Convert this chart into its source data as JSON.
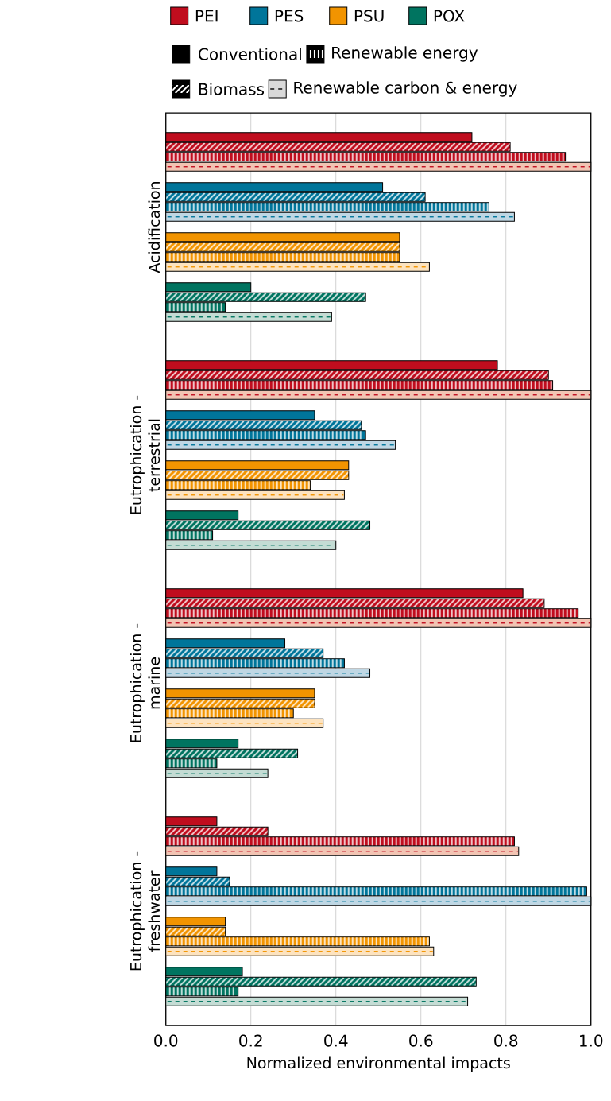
{
  "chart_data": {
    "type": "bar",
    "orientation": "horizontal",
    "xlabel": "Normalized environmental impacts",
    "categories": [
      "Acidification",
      "Eutrophication - terrestrial",
      "Eutrophication - marine",
      "Eutrophication - freshwater"
    ],
    "series": [
      {
        "name": "PEI",
        "color": "#c00d1e",
        "values": [
          0.72,
          0.78,
          0.84,
          0.12
        ]
      },
      {
        "color": "#c00d1e",
        "values": [
          0.81,
          0.9,
          0.89,
          0.24
        ]
      },
      {
        "color": "#c00d1e",
        "values": [
          0.94,
          0.91,
          0.97,
          0.82
        ]
      },
      {
        "color": "#f2c4b3",
        "values": [
          1.0,
          1.0,
          1.0,
          0.83
        ]
      },
      {
        "name": "PES",
        "color": "#00759a",
        "values": [
          0.51,
          0.35,
          0.28,
          0.12
        ]
      },
      {
        "color": "#00759a",
        "values": [
          0.61,
          0.46,
          0.37,
          0.15
        ]
      },
      {
        "color": "#00759a",
        "values": [
          0.76,
          0.47,
          0.42,
          0.99
        ]
      },
      {
        "color": "#bfd7e4",
        "values": [
          0.82,
          0.54,
          0.48,
          1.0
        ]
      },
      {
        "name": "PSU",
        "color": "#f29400",
        "values": [
          0.55,
          0.43,
          0.35,
          0.14
        ]
      },
      {
        "color": "#f29400",
        "values": [
          0.55,
          0.43,
          0.35,
          0.14
        ]
      },
      {
        "color": "#f29400",
        "values": [
          0.55,
          0.34,
          0.3,
          0.62
        ]
      },
      {
        "color": "#fde3bf",
        "values": [
          0.62,
          0.42,
          0.37,
          0.63
        ]
      },
      {
        "name": "POX",
        "color": "#007460",
        "values": [
          0.2,
          0.17,
          0.17,
          0.18
        ]
      },
      {
        "color": "#007460",
        "values": [
          0.47,
          0.48,
          0.31,
          0.73
        ]
      },
      {
        "color": "#007460",
        "values": [
          0.14,
          0.11,
          0.12,
          0.17
        ]
      },
      {
        "color": "#c4dcd4",
        "values": [
          0.39,
          0.4,
          0.24,
          0.71
        ]
      }
    ],
    "annotations": [
      "Conventional",
      "Renewable energy",
      "Biomass",
      "Renewable carbon & energy"
    ],
    "xlim": [
      0,
      1
    ],
    "xticks": [
      {
        "value": 0,
        "label": "0.0"
      },
      {
        "value": 0.2,
        "label": "0.2"
      },
      {
        "value": 0.4,
        "label": "0.4"
      },
      {
        "value": 0.6,
        "label": "0.6"
      },
      {
        "value": 0.8,
        "label": "0.8"
      },
      {
        "value": 1,
        "label": "1.0"
      }
    ],
    "grid": "x",
    "legend": "top"
  }
}
